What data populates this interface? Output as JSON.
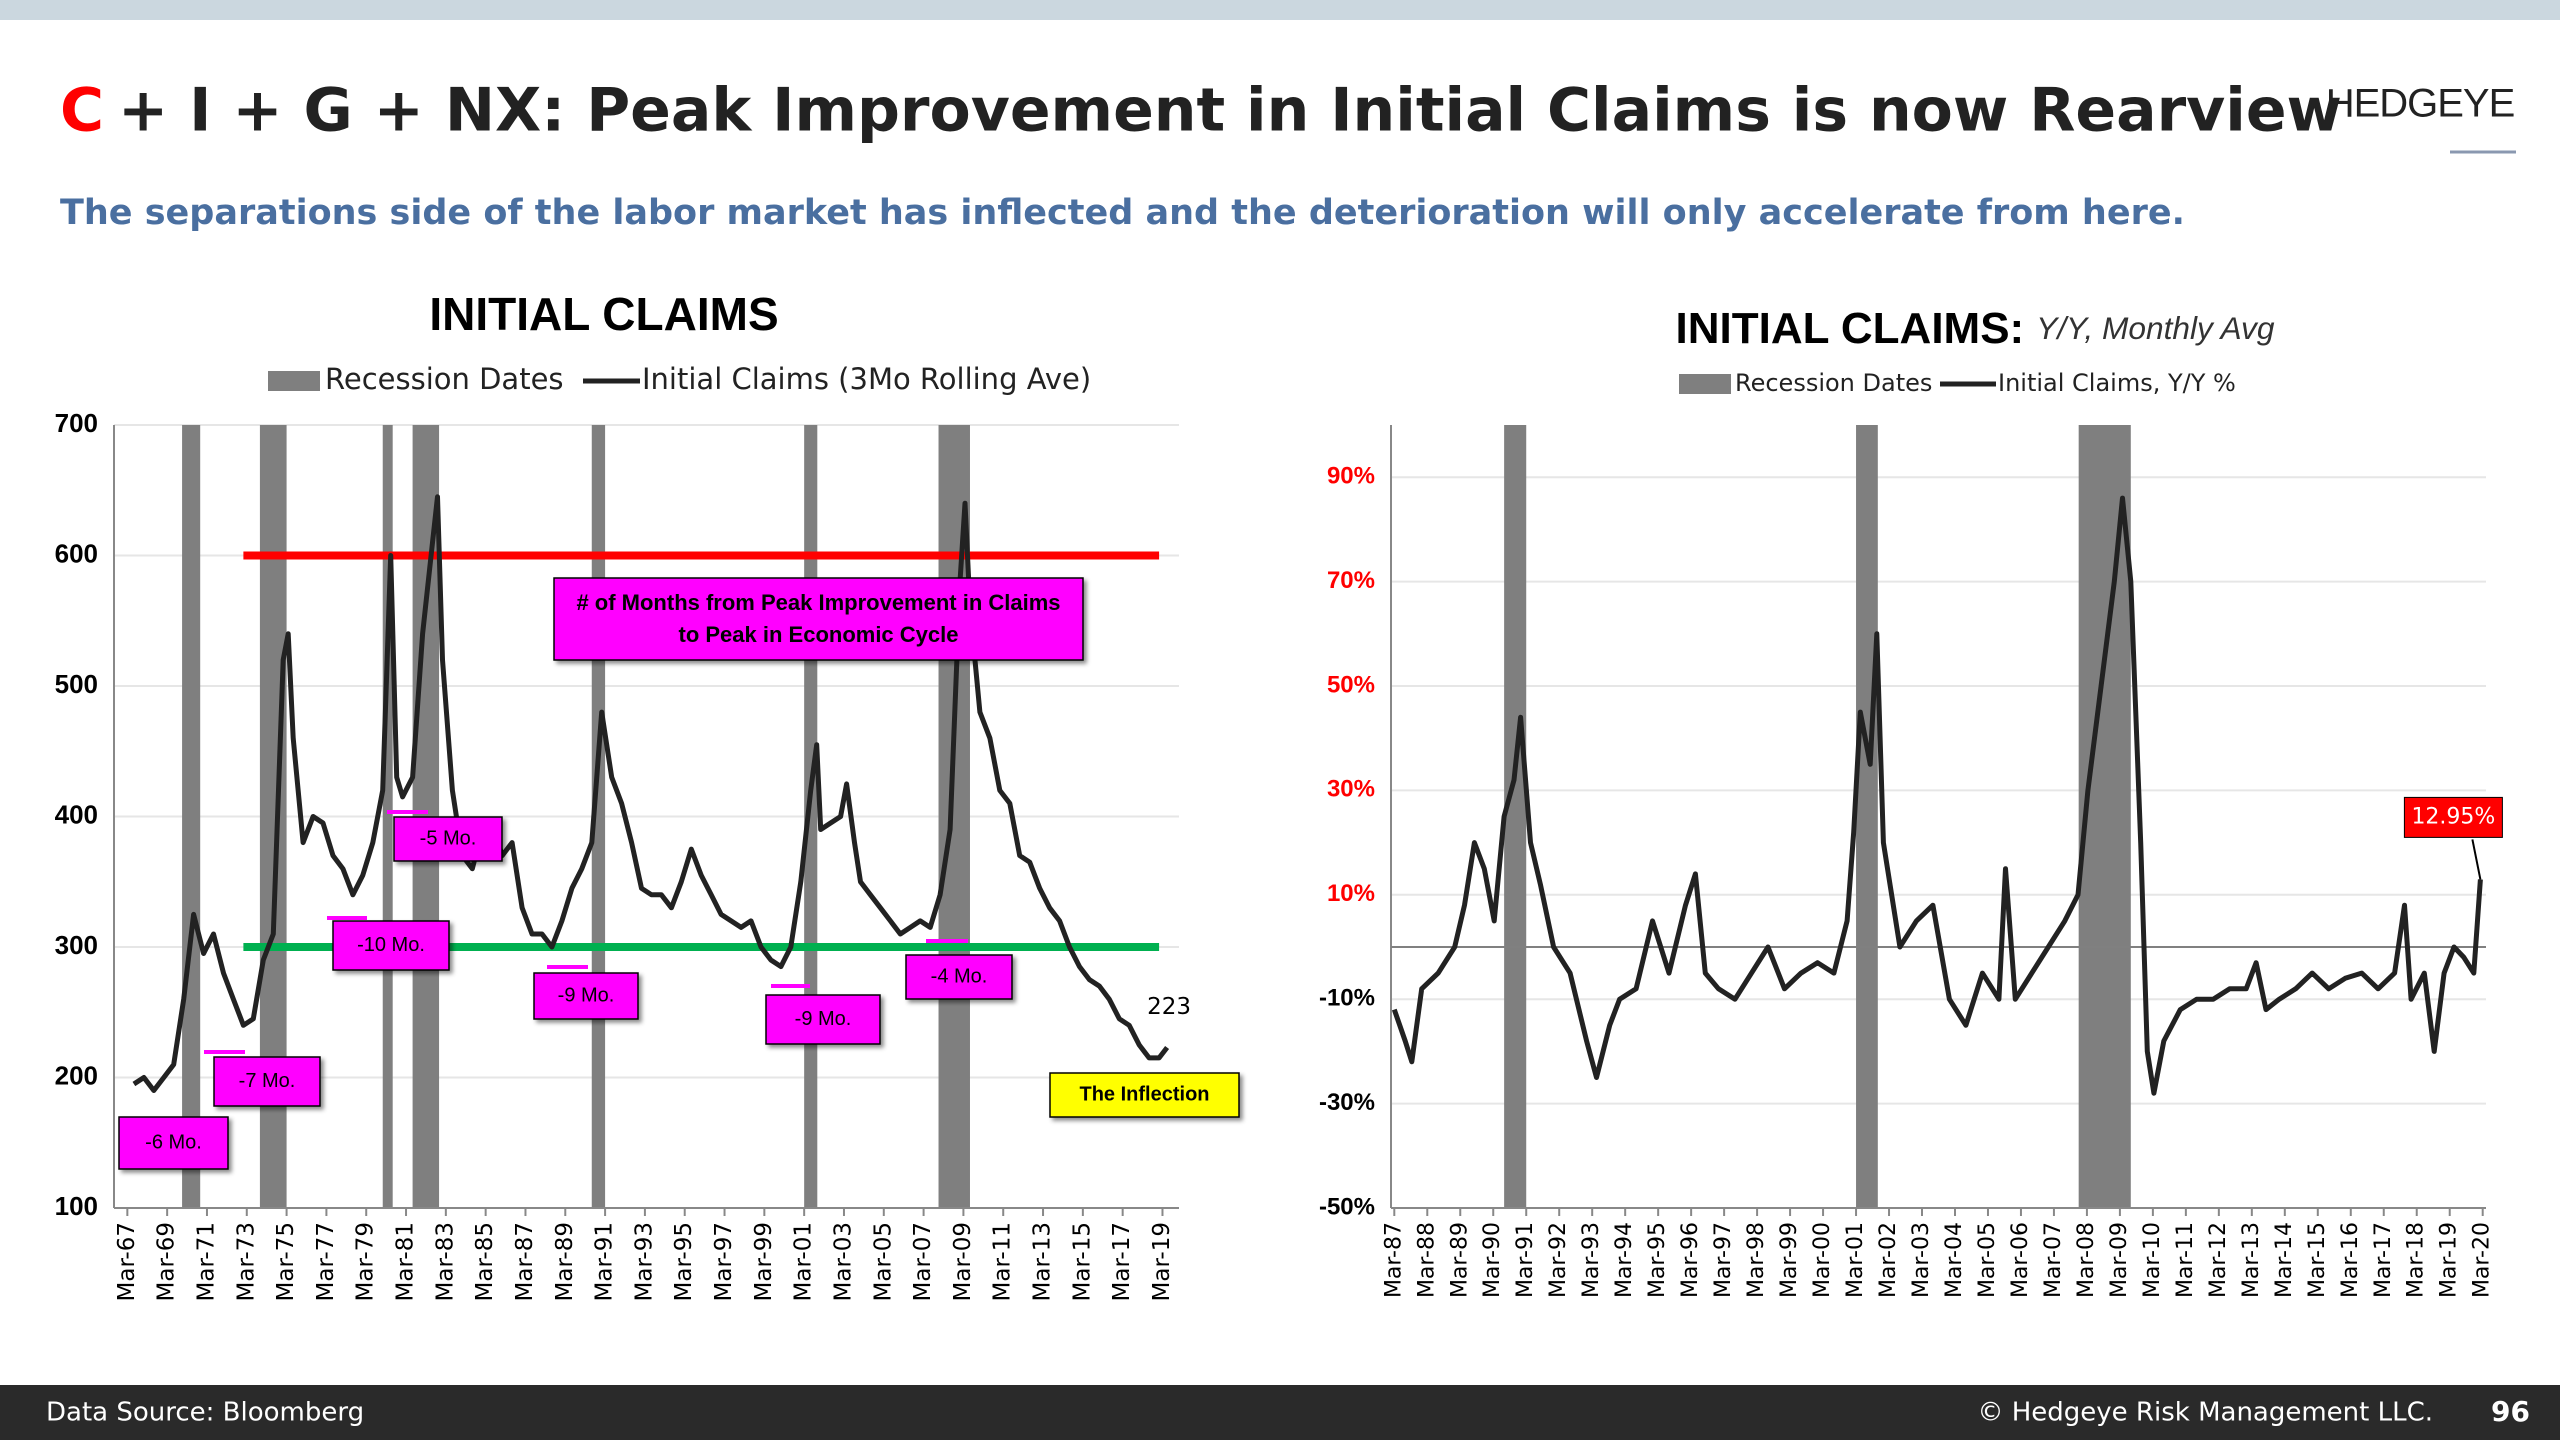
{
  "header": {
    "title_prefix": "C",
    "title": "+ I + G + NX: Peak Improvement in Initial Claims is now Rearview",
    "logo": "HEDGEYE",
    "subtitle": "The separations side of the labor market has inflected and the deterioration will only accelerate from here."
  },
  "footer": {
    "source": "Data Source: Bloomberg",
    "copyright": "© Hedgeye Risk Management LLC.",
    "page": "96"
  },
  "chart_data": [
    {
      "type": "line",
      "title": "INITIAL CLAIMS",
      "recession": {
        "name": "Recession Dates",
        "color": "#7f7f7f",
        "ranges": [
          [
            1969.92,
            1970.83
          ],
          [
            1973.83,
            1975.17
          ],
          [
            1980.0,
            1980.5
          ],
          [
            1981.5,
            1982.83
          ],
          [
            1990.5,
            1991.17
          ],
          [
            2001.17,
            2001.83
          ],
          [
            2007.92,
            2009.5
          ]
        ]
      },
      "x": [
        1967.5,
        1968,
        1968.5,
        1969,
        1969.5,
        1970,
        1970.5,
        1971,
        1971.5,
        1972,
        1972.5,
        1973,
        1973.5,
        1974,
        1974.5,
        1975,
        1975.25,
        1975.5,
        1976,
        1976.5,
        1977,
        1977.5,
        1978,
        1978.5,
        1979,
        1979.5,
        1980,
        1980.4,
        1980.7,
        1981,
        1981.5,
        1982,
        1982.5,
        1982.75,
        1983,
        1983.5,
        1984,
        1984.5,
        1985,
        1985.5,
        1986,
        1986.5,
        1987,
        1987.5,
        1988,
        1988.5,
        1989,
        1989.5,
        1990,
        1990.5,
        1991,
        1991.5,
        1992,
        1992.5,
        1993,
        1993.5,
        1994,
        1994.5,
        1995,
        1995.5,
        1996,
        1996.5,
        1997,
        1997.5,
        1998,
        1998.5,
        1999,
        1999.5,
        2000,
        2000.5,
        2001,
        2001.5,
        2001.8,
        2002,
        2002.5,
        2003,
        2003.3,
        2003.7,
        2004,
        2004.5,
        2005,
        2005.5,
        2006,
        2006.5,
        2007,
        2007.5,
        2008,
        2008.5,
        2009,
        2009.25,
        2009.5,
        2010,
        2010.5,
        2011,
        2011.5,
        2012,
        2012.5,
        2013,
        2013.5,
        2014,
        2014.5,
        2015,
        2015.5,
        2016,
        2016.5,
        2017,
        2017.5,
        2018,
        2018.5,
        2019,
        2019.4
      ],
      "series": [
        {
          "name": "Initial Claims (3Mo Rolling Ave)",
          "color": "#222222",
          "values": [
            195,
            200,
            190,
            200,
            210,
            260,
            325,
            295,
            310,
            280,
            260,
            240,
            245,
            290,
            310,
            520,
            540,
            460,
            380,
            400,
            395,
            370,
            360,
            340,
            355,
            380,
            420,
            600,
            430,
            415,
            430,
            540,
            610,
            645,
            520,
            420,
            370,
            360,
            390,
            395,
            370,
            380,
            330,
            310,
            310,
            300,
            320,
            345,
            360,
            380,
            480,
            430,
            410,
            380,
            345,
            340,
            340,
            330,
            350,
            375,
            355,
            340,
            325,
            320,
            315,
            320,
            300,
            290,
            285,
            300,
            350,
            420,
            455,
            390,
            395,
            400,
            425,
            380,
            350,
            340,
            330,
            320,
            310,
            315,
            320,
            315,
            340,
            390,
            580,
            640,
            560,
            480,
            460,
            420,
            410,
            370,
            365,
            345,
            330,
            320,
            300,
            285,
            275,
            270,
            260,
            245,
            240,
            225,
            215,
            215,
            223
          ]
        }
      ],
      "reference_lines": [
        {
          "value": 600,
          "color": "#ff0000"
        },
        {
          "value": 300,
          "color": "#00b050"
        }
      ],
      "annotations": [
        {
          "text": "-6 Mo.",
          "color": "#ff00ff"
        },
        {
          "text": "-7 Mo.",
          "color": "#ff00ff"
        },
        {
          "text": "-10 Mo.",
          "color": "#ff00ff"
        },
        {
          "text": "-5 Mo.",
          "color": "#ff00ff"
        },
        {
          "text": "-9 Mo.",
          "color": "#ff00ff"
        },
        {
          "text": "-9 Mo.",
          "color": "#ff00ff"
        },
        {
          "text": "-4 Mo.",
          "color": "#ff00ff"
        },
        {
          "text": "# of Months from Peak Improvement in Claims to Peak in Economic Cycle",
          "color": "#ff00ff"
        },
        {
          "text": "The Inflection",
          "color": "#ffff00"
        }
      ],
      "xlim": [
        1966.5,
        2020
      ],
      "xticks": [
        {
          "value": 1967.17,
          "label": "Mar-67"
        },
        {
          "value": 1969.17,
          "label": "Mar-69"
        },
        {
          "value": 1971.17,
          "label": "Mar-71"
        },
        {
          "value": 1973.17,
          "label": "Mar-73"
        },
        {
          "value": 1975.17,
          "label": "Mar-75"
        },
        {
          "value": 1977.17,
          "label": "Mar-77"
        },
        {
          "value": 1979.17,
          "label": "Mar-79"
        },
        {
          "value": 1981.17,
          "label": "Mar-81"
        },
        {
          "value": 1983.17,
          "label": "Mar-83"
        },
        {
          "value": 1985.17,
          "label": "Mar-85"
        },
        {
          "value": 1987.17,
          "label": "Mar-87"
        },
        {
          "value": 1989.17,
          "label": "Mar-89"
        },
        {
          "value": 1991.17,
          "label": "Mar-91"
        },
        {
          "value": 1993.17,
          "label": "Mar-93"
        },
        {
          "value": 1995.17,
          "label": "Mar-95"
        },
        {
          "value": 1997.17,
          "label": "Mar-97"
        },
        {
          "value": 1999.17,
          "label": "Mar-99"
        },
        {
          "value": 2001.17,
          "label": "Mar-01"
        },
        {
          "value": 2003.17,
          "label": "Mar-03"
        },
        {
          "value": 2005.17,
          "label": "Mar-05"
        },
        {
          "value": 2007.17,
          "label": "Mar-07"
        },
        {
          "value": 2009.17,
          "label": "Mar-09"
        },
        {
          "value": 2011.17,
          "label": "Mar-11"
        },
        {
          "value": 2013.17,
          "label": "Mar-13"
        },
        {
          "value": 2015.17,
          "label": "Mar-15"
        },
        {
          "value": 2017.17,
          "label": "Mar-17"
        },
        {
          "value": 2019.17,
          "label": "Mar-19"
        }
      ],
      "ylim": [
        100,
        700
      ],
      "yticks": [
        100,
        200,
        300,
        400,
        500,
        600,
        700
      ],
      "grid": true,
      "last_value_label": true
    },
    {
      "type": "line",
      "title": "INITIAL CLAIMS:",
      "subtitle": "Y/Y, Monthly Avg",
      "recession": {
        "name": "Recession Dates",
        "color": "#7f7f7f",
        "ranges": [
          [
            1990.5,
            1991.17
          ],
          [
            2001.17,
            2001.83
          ],
          [
            2007.92,
            2009.5
          ]
        ]
      },
      "x": [
        1987.17,
        1987.5,
        1987.7,
        1988,
        1988.5,
        1989,
        1989.3,
        1989.6,
        1989.9,
        1990.2,
        1990.5,
        1990.8,
        1991,
        1991.3,
        1991.6,
        1992,
        1992.5,
        1993,
        1993.3,
        1993.7,
        1994,
        1994.5,
        1995,
        1995.5,
        1996,
        1996.3,
        1996.6,
        1997,
        1997.5,
        1998,
        1998.5,
        1999,
        1999.5,
        2000,
        2000.5,
        2000.9,
        2001.1,
        2001.3,
        2001.6,
        2001.8,
        2002,
        2002.5,
        2003,
        2003.5,
        2004,
        2004.5,
        2005,
        2005.5,
        2005.7,
        2006,
        2006.5,
        2007,
        2007.5,
        2007.9,
        2008.2,
        2008.6,
        2009,
        2009.25,
        2009.5,
        2009.8,
        2010,
        2010.2,
        2010.5,
        2011,
        2011.5,
        2012,
        2012.5,
        2013,
        2013.3,
        2013.6,
        2014,
        2014.5,
        2015,
        2015.5,
        2016,
        2016.5,
        2017,
        2017.5,
        2017.8,
        2018,
        2018.4,
        2018.7,
        2019,
        2019.3,
        2019.6,
        2019.9,
        2020.1
      ],
      "series": [
        {
          "name": "Initial Claims, Y/Y %",
          "color": "#222222",
          "values": [
            -12,
            -18,
            -22,
            -8,
            -5,
            0,
            8,
            20,
            15,
            5,
            25,
            32,
            44,
            20,
            12,
            0,
            -5,
            -18,
            -25,
            -15,
            -10,
            -8,
            5,
            -5,
            8,
            14,
            -5,
            -8,
            -10,
            -5,
            0,
            -8,
            -5,
            -3,
            -5,
            5,
            22,
            45,
            35,
            60,
            20,
            0,
            5,
            8,
            -10,
            -15,
            -5,
            -10,
            15,
            -10,
            -5,
            0,
            5,
            10,
            30,
            50,
            70,
            86,
            70,
            20,
            -20,
            -28,
            -18,
            -12,
            -10,
            -10,
            -8,
            -8,
            -3,
            -12,
            -10,
            -8,
            -5,
            -8,
            -6,
            -5,
            -8,
            -5,
            8,
            -10,
            -5,
            -20,
            -5,
            0,
            -2,
            -5,
            12.95
          ],
          "value_labels": [
            null,
            null,
            null,
            null,
            null,
            null,
            null,
            null,
            null,
            null,
            null,
            null,
            null,
            null,
            null,
            null,
            null,
            null,
            null,
            null,
            null,
            null,
            null,
            null,
            null,
            null,
            null,
            null,
            null,
            null,
            null,
            null,
            null,
            null,
            null,
            null,
            null,
            null,
            null,
            null,
            null,
            null,
            null,
            null,
            null,
            null,
            null,
            null,
            null,
            null,
            null,
            null,
            null,
            null,
            null,
            null,
            null,
            null,
            null,
            null,
            null,
            null,
            null,
            null,
            null,
            null,
            null,
            null,
            null,
            null,
            null,
            null,
            null,
            null,
            null,
            null,
            null,
            null,
            null,
            null,
            null,
            null,
            null,
            null,
            null,
            null,
            "12.95%"
          ]
        }
      ],
      "reference_lines": [
        {
          "value": 0,
          "color": "#808080"
        }
      ],
      "xlim": [
        1987.07,
        2020.27
      ],
      "xticks": [
        {
          "value": 1987.17,
          "label": "Mar-87"
        },
        {
          "value": 1988.17,
          "label": "Mar-88"
        },
        {
          "value": 1989.17,
          "label": "Mar-89"
        },
        {
          "value": 1990.17,
          "label": "Mar-90"
        },
        {
          "value": 1991.17,
          "label": "Mar-91"
        },
        {
          "value": 1992.17,
          "label": "Mar-92"
        },
        {
          "value": 1993.17,
          "label": "Mar-93"
        },
        {
          "value": 1994.17,
          "label": "Mar-94"
        },
        {
          "value": 1995.17,
          "label": "Mar-95"
        },
        {
          "value": 1996.17,
          "label": "Mar-96"
        },
        {
          "value": 1997.17,
          "label": "Mar-97"
        },
        {
          "value": 1998.17,
          "label": "Mar-98"
        },
        {
          "value": 1999.17,
          "label": "Mar-99"
        },
        {
          "value": 2000.17,
          "label": "Mar-00"
        },
        {
          "value": 2001.17,
          "label": "Mar-01"
        },
        {
          "value": 2002.17,
          "label": "Mar-02"
        },
        {
          "value": 2003.17,
          "label": "Mar-03"
        },
        {
          "value": 2004.17,
          "label": "Mar-04"
        },
        {
          "value": 2005.17,
          "label": "Mar-05"
        },
        {
          "value": 2006.17,
          "label": "Mar-06"
        },
        {
          "value": 2007.17,
          "label": "Mar-07"
        },
        {
          "value": 2008.17,
          "label": "Mar-08"
        },
        {
          "value": 2009.17,
          "label": "Mar-09"
        },
        {
          "value": 2010.17,
          "label": "Mar-10"
        },
        {
          "value": 2011.17,
          "label": "Mar-11"
        },
        {
          "value": 2012.17,
          "label": "Mar-12"
        },
        {
          "value": 2013.17,
          "label": "Mar-13"
        },
        {
          "value": 2014.17,
          "label": "Mar-14"
        },
        {
          "value": 2015.17,
          "label": "Mar-15"
        },
        {
          "value": 2016.17,
          "label": "Mar-16"
        },
        {
          "value": 2017.17,
          "label": "Mar-17"
        },
        {
          "value": 2018.17,
          "label": "Mar-18"
        },
        {
          "value": 2019.17,
          "label": "Mar-19"
        },
        {
          "value": 2020.17,
          "label": "Mar-20"
        }
      ],
      "ylim": [
        -50,
        100
      ],
      "yticks": [
        {
          "value": -50,
          "label": "-50%"
        },
        {
          "value": -30,
          "label": "-30%"
        },
        {
          "value": -10,
          "label": "-10%"
        },
        {
          "value": 10,
          "label": "10%"
        },
        {
          "value": 30,
          "label": "30%"
        },
        {
          "value": 50,
          "label": "50%"
        },
        {
          "value": 70,
          "label": "70%"
        },
        {
          "value": 90,
          "label": "90%"
        }
      ],
      "positive_tick_color": "#ff0000",
      "label_box_color": "#ff0000",
      "grid": true
    }
  ]
}
